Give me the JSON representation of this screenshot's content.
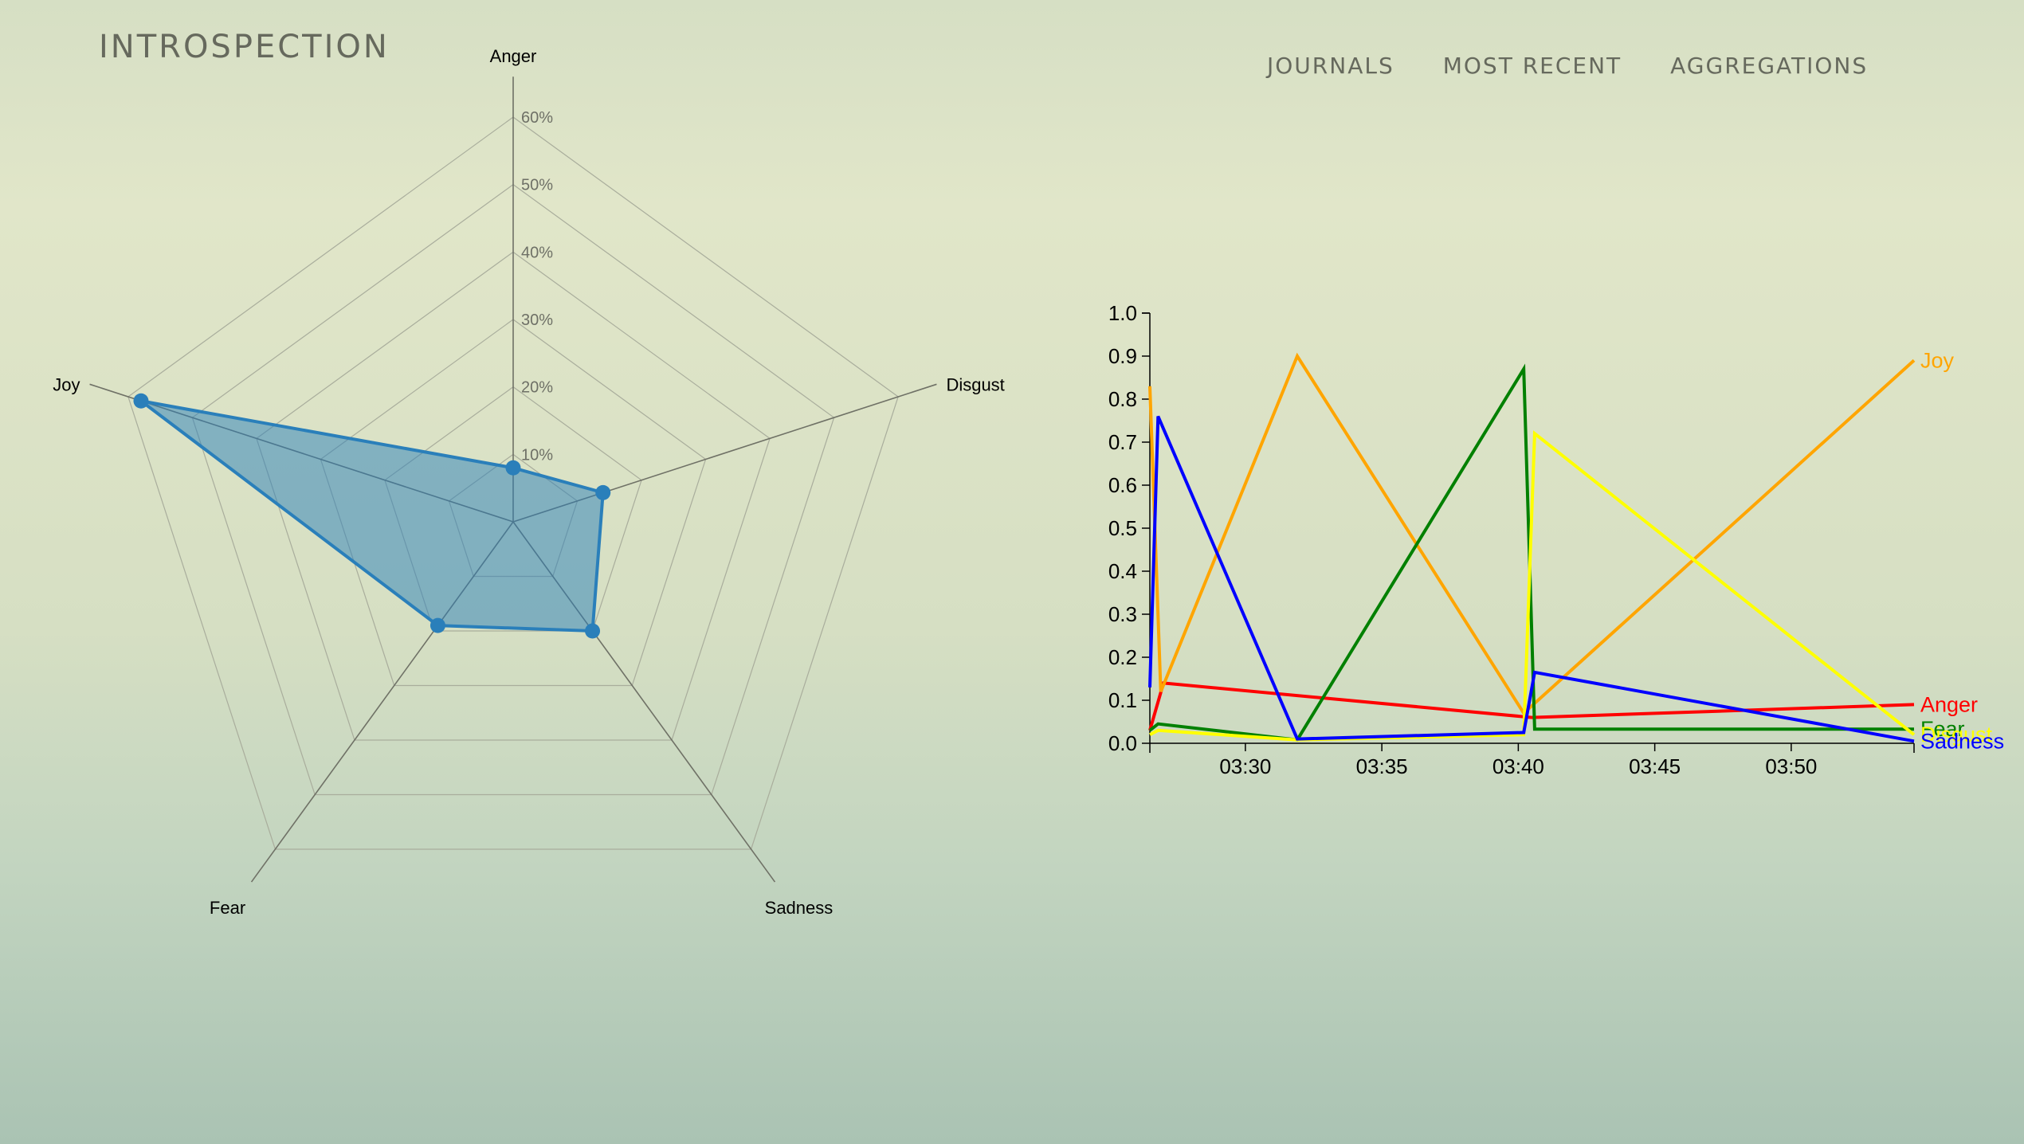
{
  "app": {
    "title": "INTROSPECTION",
    "nav": [
      "JOURNALS",
      "MOST RECENT",
      "AGGREGATIONS"
    ]
  },
  "chart_data": [
    {
      "type": "radar",
      "axes": [
        "Anger",
        "Disgust",
        "Sadness",
        "Fear",
        "Joy"
      ],
      "values": [
        0.08,
        0.14,
        0.2,
        0.19,
        0.58
      ],
      "max": 0.6,
      "levels": [
        "10%",
        "20%",
        "30%",
        "40%",
        "50%",
        "60%"
      ],
      "fill_color": "#2a7fba"
    },
    {
      "type": "line",
      "x_ticks": [
        "03:30",
        "03:35",
        "03:40",
        "03:45",
        "03:50"
      ],
      "y_ticks": [
        "0.0",
        "0.1",
        "0.2",
        "0.3",
        "0.4",
        "0.5",
        "0.6",
        "0.7",
        "0.8",
        "0.9",
        "1.0"
      ],
      "xlim_minutes": [
        206.5,
        234.5
      ],
      "ylim": [
        0,
        1
      ],
      "series": [
        {
          "name": "Anger",
          "color": "#ff0000",
          "points": [
            [
              206.5,
              0.03
            ],
            [
              207.0,
              0.14
            ],
            [
              220.5,
              0.06
            ],
            [
              234.5,
              0.09
            ]
          ]
        },
        {
          "name": "Joy",
          "color": "#ffa500",
          "points": [
            [
              206.5,
              0.83
            ],
            [
              206.9,
              0.12
            ],
            [
              211.9,
              0.9
            ],
            [
              220.2,
              0.07
            ],
            [
              234.5,
              0.89
            ]
          ]
        },
        {
          "name": "Fear",
          "color": "#008000",
          "points": [
            [
              206.5,
              0.03
            ],
            [
              206.8,
              0.045
            ],
            [
              211.9,
              0.008
            ],
            [
              220.2,
              0.87
            ],
            [
              220.6,
              0.033
            ],
            [
              234.5,
              0.033
            ]
          ]
        },
        {
          "name": "Disgust",
          "color": "#ffff00",
          "points": [
            [
              206.5,
              0.02
            ],
            [
              206.8,
              0.03
            ],
            [
              211.9,
              0.008
            ],
            [
              220.2,
              0.02
            ],
            [
              220.6,
              0.72
            ],
            [
              234.5,
              0.02
            ]
          ]
        },
        {
          "name": "Sadness",
          "color": "#0000ff",
          "points": [
            [
              206.5,
              0.13
            ],
            [
              206.8,
              0.76
            ],
            [
              211.9,
              0.01
            ],
            [
              220.2,
              0.025
            ],
            [
              220.6,
              0.165
            ],
            [
              234.5,
              0.005
            ]
          ]
        }
      ]
    }
  ]
}
